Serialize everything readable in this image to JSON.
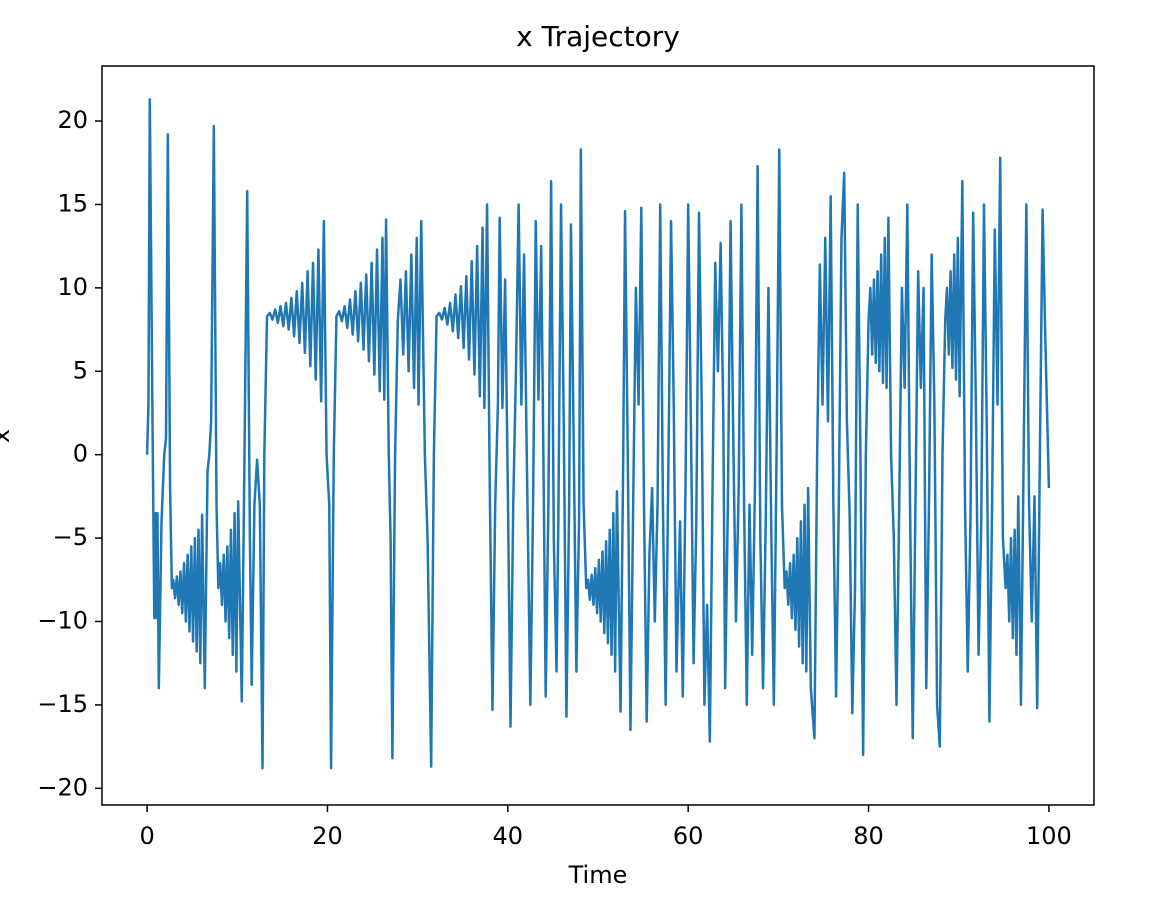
{
  "chart_data": {
    "type": "line",
    "title": "x Trajectory",
    "xlabel": "Time",
    "ylabel": "x",
    "color": "#1f77b4",
    "xlim": [
      -5,
      105
    ],
    "ylim": [
      -21,
      23.3
    ],
    "xticks": [
      0,
      20,
      40,
      60,
      80,
      100
    ],
    "yticks": [
      {
        "value": -20,
        "label": "−20"
      },
      {
        "value": -15,
        "label": "−15"
      },
      {
        "value": -10,
        "label": "−10"
      },
      {
        "value": -5,
        "label": "−5"
      },
      0,
      5,
      10,
      15,
      20
    ],
    "x": [
      0,
      0.15,
      0.3,
      0.6,
      0.8,
      0.95,
      1.05,
      1.15,
      1.3,
      1.6,
      1.9,
      2.1,
      2.3,
      2.55,
      2.75,
      2.9,
      3.1,
      3.3,
      3.5,
      3.7,
      3.9,
      4.1,
      4.3,
      4.5,
      4.7,
      4.9,
      5.1,
      5.3,
      5.5,
      5.7,
      5.9,
      6.1,
      6.4,
      6.7,
      6.9,
      7.1,
      7.4,
      7.7,
      7.9,
      8.1,
      8.3,
      8.5,
      8.7,
      8.9,
      9.1,
      9.3,
      9.5,
      9.7,
      9.9,
      10.1,
      10.5,
      10.8,
      11.1,
      11.4,
      11.6,
      11.9,
      12.2,
      12.5,
      12.8,
      13,
      13.3,
      13.6,
      13.9,
      14.2,
      14.5,
      14.8,
      15.1,
      15.4,
      15.7,
      16,
      16.3,
      16.6,
      16.9,
      17.2,
      17.5,
      17.8,
      18.1,
      18.4,
      18.7,
      19,
      19.3,
      19.6,
      19.9,
      20.2,
      20.4,
      20.7,
      21,
      21.3,
      21.6,
      21.9,
      22.2,
      22.5,
      22.8,
      23.1,
      23.4,
      23.7,
      24,
      24.3,
      24.6,
      24.9,
      25.2,
      25.5,
      25.8,
      26.1,
      26.3,
      26.5,
      26.8,
      27,
      27.2,
      27.5,
      27.8,
      28.1,
      28.4,
      28.7,
      29,
      29.3,
      29.6,
      29.9,
      30.1,
      30.4,
      30.8,
      31.1,
      31.5,
      31.8,
      32.1,
      32.4,
      32.7,
      33,
      33.3,
      33.6,
      33.9,
      34.2,
      34.5,
      34.8,
      35.1,
      35.4,
      35.7,
      36,
      36.3,
      36.6,
      36.9,
      37.2,
      37.4,
      37.7,
      38,
      38.3,
      38.6,
      38.9,
      39.1,
      39.4,
      39.7,
      40,
      40.3,
      40.6,
      40.9,
      41.2,
      41.5,
      41.8,
      42.1,
      42.5,
      42.8,
      43.1,
      43.4,
      43.7,
      44,
      44.2,
      44.5,
      44.8,
      45.1,
      45.4,
      45.6,
      45.9,
      46.2,
      46.5,
      46.8,
      47,
      47.3,
      47.6,
      47.9,
      48.1,
      48.4,
      48.7,
      48.9,
      49.1,
      49.3,
      49.5,
      49.7,
      49.9,
      50.1,
      50.3,
      50.5,
      50.7,
      50.9,
      51.1,
      51.3,
      51.5,
      51.7,
      51.9,
      52.1,
      52.5,
      52.8,
      53,
      53.3,
      53.6,
      53.9,
      54.2,
      54.5,
      54.8,
      55.1,
      55.4,
      55.7,
      56,
      56.3,
      56.6,
      56.9,
      57.2,
      57.5,
      57.8,
      58.1,
      58.4,
      58.7,
      59.1,
      59.4,
      59.7,
      60,
      60.3,
      60.6,
      60.9,
      61.2,
      61.5,
      61.8,
      62.1,
      62.4,
      62.7,
      63,
      63.3,
      63.6,
      63.9,
      64.1,
      64.4,
      64.7,
      65,
      65.3,
      65.6,
      65.9,
      66.2,
      66.5,
      66.8,
      67.1,
      67.4,
      67.7,
      68,
      68.3,
      68.6,
      68.9,
      69.2,
      69.5,
      69.8,
      70.1,
      70.4,
      70.7,
      70.9,
      71.1,
      71.3,
      71.5,
      71.7,
      71.9,
      72.1,
      72.3,
      72.5,
      72.7,
      72.9,
      73.1,
      73.3,
      73.6,
      74,
      74.3,
      74.6,
      74.9,
      75.2,
      75.5,
      75.8,
      76.1,
      76.4,
      76.7,
      77,
      77.3,
      77.6,
      77.9,
      78.2,
      78.5,
      78.8,
      79.1,
      79.4,
      79.7,
      80,
      80.2,
      80.4,
      80.6,
      80.8,
      81,
      81.2,
      81.4,
      81.6,
      81.8,
      82,
      82.2,
      82.5,
      82.8,
      83.1,
      83.4,
      83.7,
      84,
      84.3,
      84.6,
      84.9,
      85.2,
      85.5,
      85.8,
      86.1,
      86.4,
      86.7,
      87,
      87.3,
      87.6,
      87.9,
      88.2,
      88.5,
      88.7,
      88.9,
      89.1,
      89.3,
      89.5,
      89.7,
      89.9,
      90.1,
      90.4,
      90.7,
      91,
      91.3,
      91.6,
      91.9,
      92.2,
      92.5,
      92.8,
      93.1,
      93.4,
      93.7,
      94,
      94.3,
      94.6,
      94.9,
      95.2,
      95.4,
      95.6,
      95.8,
      96,
      96.2,
      96.4,
      96.6,
      96.9,
      97.2,
      97.5,
      97.8,
      98.1,
      98.4,
      98.7,
      99,
      99.3,
      99.6,
      100
    ],
    "values": [
      0,
      3,
      21.3,
      2,
      -9.8,
      -3.5,
      -9.8,
      -3.5,
      -14,
      -4,
      0,
      1,
      19.2,
      -2,
      -8,
      -7.5,
      -8.6,
      -7.3,
      -9,
      -7,
      -9.5,
      -6.5,
      -10,
      -6,
      -10.6,
      -5.5,
      -11.2,
      -5,
      -11.8,
      -4.5,
      -12.5,
      -3.6,
      -14,
      -1,
      0,
      2,
      19.7,
      -3,
      -8,
      -6.5,
      -9,
      -6,
      -10,
      -5.5,
      -11,
      -4.5,
      -12,
      -3.5,
      -13,
      -2.8,
      -14.8,
      0,
      15.8,
      -5,
      -13.8,
      -3,
      -0.3,
      -3,
      -18.8,
      0,
      8.3,
      8.5,
      8.1,
      8.7,
      7.9,
      8.9,
      7.7,
      9.1,
      7.5,
      9.4,
      7.1,
      9.8,
      6.7,
      10.3,
      6.1,
      11,
      5.3,
      11.5,
      4.5,
      12.3,
      3.2,
      14,
      0,
      -3,
      -18.8,
      0,
      8.3,
      8.6,
      8,
      8.9,
      7.6,
      9.3,
      7.2,
      9.8,
      6.8,
      10.3,
      6.3,
      10.8,
      5.6,
      11.5,
      4.8,
      12.3,
      3.8,
      13,
      3.3,
      14.1,
      0,
      -5,
      -18.2,
      0,
      8,
      10.5,
      6,
      11,
      5,
      12,
      4,
      13,
      3,
      14,
      0,
      -5,
      -18.7,
      0,
      8.3,
      8.5,
      8.1,
      8.8,
      7.8,
      9.1,
      7.4,
      9.6,
      7,
      10.1,
      6.4,
      10.7,
      5.7,
      11.6,
      4.8,
      12.5,
      3.5,
      13.6,
      2.8,
      15,
      -2,
      -15.3,
      -3,
      3,
      14.2,
      2.8,
      10.5,
      -2,
      -16.3,
      -3,
      5,
      15,
      3,
      12,
      0,
      -15,
      -3,
      14,
      3.3,
      12.5,
      -3,
      -14.5,
      -3,
      16.4,
      -5,
      -13,
      -4,
      15,
      2,
      -15.7,
      -3,
      13.8,
      1,
      -13,
      -4,
      18.3,
      -3,
      -8,
      -7.5,
      -8.7,
      -7.2,
      -9,
      -6.8,
      -9.5,
      -6.3,
      -10,
      -5.8,
      -10.7,
      -5.2,
      -11.3,
      -4.5,
      -12,
      -3.5,
      -13,
      -2.2,
      -15.4,
      0,
      14.6,
      0,
      -16.5,
      -3,
      10,
      3,
      14.8,
      -3,
      -16,
      -6,
      -2,
      -10,
      -3,
      15,
      -3,
      -15,
      -1,
      14,
      3,
      -13,
      -4,
      -14.5,
      -2,
      15,
      2,
      -12.5,
      -4,
      14.5,
      3,
      -15,
      -9,
      -17.2,
      -2,
      11.5,
      5,
      12.7,
      2,
      -14,
      -3,
      14,
      1,
      -10,
      -2,
      15,
      -3,
      -15,
      -3,
      -12,
      -2,
      17.3,
      -5,
      -14,
      -4,
      10,
      -4,
      -15,
      0,
      18.3,
      -3,
      -8,
      -7,
      -9,
      -6.5,
      -9.8,
      -6,
      -10.5,
      -5,
      -11.5,
      -4,
      -12.5,
      -3,
      -13,
      -2,
      -14,
      -17,
      0,
      11.4,
      3,
      13,
      2,
      15.5,
      -3,
      -14.5,
      -3,
      13,
      16.9,
      2,
      -3.5,
      -15.5,
      -8,
      15,
      0,
      -18,
      0,
      8,
      10,
      6,
      10.5,
      5.5,
      11,
      5,
      12,
      4.3,
      13,
      4,
      14.2,
      0,
      -5,
      -15,
      -3,
      10,
      4,
      15,
      -3,
      -17,
      -3,
      11,
      4,
      10,
      -14,
      -3,
      12,
      3,
      -15,
      -17.5,
      0,
      8,
      10,
      6,
      11,
      5.2,
      12,
      4.5,
      13,
      3.5,
      16.4,
      -3,
      -13,
      -4,
      14.5,
      3,
      -12,
      -4,
      15,
      2,
      -16,
      -3,
      13.5,
      3,
      17.8,
      -5,
      -8,
      -6,
      -10,
      -5,
      -11,
      -4.5,
      -12,
      -2.5,
      -15,
      0,
      15,
      -3,
      -10,
      -2.5,
      -15.2,
      0,
      14.7,
      7,
      -2
    ]
  }
}
